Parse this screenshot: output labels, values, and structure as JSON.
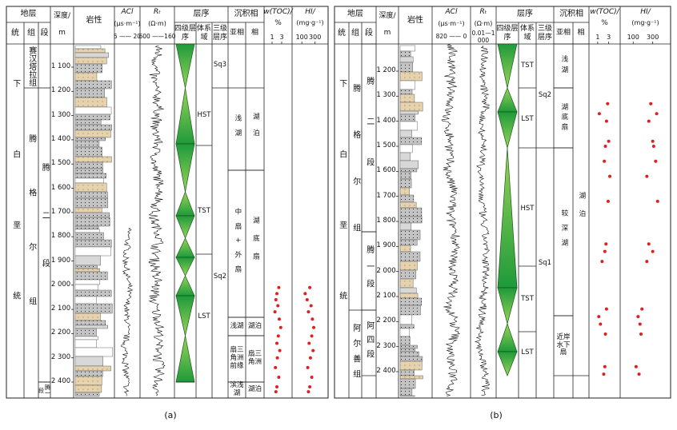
{
  "panels": [
    {
      "caption": "(a)",
      "header": {
        "strata": "地层",
        "system": "统",
        "formation": "组",
        "member": "段",
        "depth": "深度/",
        "depth_unit": "m",
        "lithology": "岩性",
        "ac": "ACl",
        "ac_unit": "(μs·m⁻¹)",
        "ac_scale": "5 —— 20",
        "rt": "Rₜ",
        "rt_unit": "(Ω·m)",
        "rt_scale": "600 ——160",
        "sequence": "层序",
        "fourth": "四级层序",
        "tract": "体系域",
        "third": "三级层序",
        "facies_group": "沉积相",
        "subfacies": "亚相",
        "facies": "相",
        "toc": "w(TOC)/",
        "toc_unit": "%",
        "hi": "HI/",
        "hi_unit": "(mg·g⁻¹)"
      },
      "system": "下白垩统",
      "formations": [
        "赛汉塔拉组",
        "腾格尔组"
      ],
      "members": [
        "腾二段",
        "腾一段"
      ],
      "depth_ticks": [
        {
          "value": 1100,
          "label": "1 100"
        },
        {
          "value": 1200,
          "label": "1 200"
        },
        {
          "value": 1300,
          "label": "1 300"
        },
        {
          "value": 1400,
          "label": "1 400"
        },
        {
          "value": 1500,
          "label": "1 500"
        },
        {
          "value": 1600,
          "label": "1 600"
        },
        {
          "value": 1700,
          "label": "1 700"
        },
        {
          "value": 1800,
          "label": "1 800"
        },
        {
          "value": 1900,
          "label": "1 900"
        },
        {
          "value": 2000,
          "label": "2 000"
        },
        {
          "value": 2100,
          "label": "2 100"
        },
        {
          "value": 2200,
          "label": "2 200"
        },
        {
          "value": 2300,
          "label": "2 300"
        },
        {
          "value": 2400,
          "label": "2 400"
        }
      ],
      "tracts": [
        "HST",
        "TST",
        "LST"
      ],
      "third": [
        "Sq3",
        "Sq2"
      ],
      "subfacies": [
        "浅湖",
        "中扇+外扇",
        "浅湖",
        "扇三角洲前缘",
        "滨浅湖"
      ],
      "facies": [
        "湖泊",
        "湖底扇",
        "湖泊",
        "扇三角洲",
        "湖泊"
      ],
      "toc_xlim": [
        0,
        4.5
      ],
      "toc_ticks": [
        1,
        3
      ],
      "hi_xlim": [
        0,
        450
      ],
      "hi_ticks": [
        100,
        300
      ],
      "samples": {
        "depth": [
          2010,
          2035,
          2060,
          2085,
          2110,
          2140,
          2175,
          2210,
          2240,
          2270,
          2300,
          2340,
          2380,
          2420,
          2440
        ],
        "toc": [
          2.4,
          2.0,
          1.8,
          2.2,
          1.6,
          2.5,
          2.8,
          2.3,
          2.0,
          2.6,
          2.1,
          1.7,
          2.4,
          2.0,
          1.8
        ],
        "hi": [
          220,
          150,
          180,
          240,
          200,
          260,
          280,
          250,
          210,
          270,
          230,
          190,
          250,
          220,
          200
        ]
      }
    },
    {
      "caption": "(b)",
      "header": {
        "strata": "地层",
        "system": "统",
        "formation": "组",
        "member": "段",
        "depth": "深度/",
        "depth_unit": "m",
        "lithology": "岩性",
        "ac": "ACl",
        "ac_unit": "(μs·m⁻¹)",
        "ac_scale": "820 —— 0",
        "rt": "Rₜ",
        "rt_unit": "(Ω·m)",
        "rt_scale": "0.01—1 000",
        "sequence": "层序",
        "fourth": "四级层序",
        "tract": "体系域",
        "third": "三级层序",
        "facies_group": "沉积相",
        "subfacies": "亚相",
        "facies": "相",
        "toc": "w(TOC)/",
        "toc_unit": "%",
        "hi": "HI/",
        "hi_unit": "(mg·g⁻¹)"
      },
      "system": "下白垩统",
      "formations": [
        "腾格尔组",
        "阿尔善组"
      ],
      "members": [
        "腾二段",
        "腾一段",
        "阿四段"
      ],
      "depth_ticks": [
        {
          "value": 1200,
          "label": "1 200"
        },
        {
          "value": 1300,
          "label": "1 300"
        },
        {
          "value": 1400,
          "label": "1 400"
        },
        {
          "value": 1500,
          "label": "1 500"
        },
        {
          "value": 1600,
          "label": "1 600"
        },
        {
          "value": 1700,
          "label": "1 700"
        },
        {
          "value": 1800,
          "label": "1 800"
        },
        {
          "value": 1900,
          "label": "1 900"
        },
        {
          "value": 2000,
          "label": "2 000"
        },
        {
          "value": 2100,
          "label": "2 100"
        },
        {
          "value": 2200,
          "label": "2 200"
        },
        {
          "value": 2300,
          "label": "2 300"
        },
        {
          "value": 2400,
          "label": "2 400"
        }
      ],
      "tracts": [
        "TST",
        "LST",
        "HST",
        "TST",
        "LST"
      ],
      "third": [
        "Sq2",
        "Sq1"
      ],
      "subfacies": [
        "浅湖",
        "湖底扇",
        "较深湖",
        "近岸水下扇"
      ],
      "facies": [
        "湖泊"
      ],
      "toc_xlim": [
        0,
        4.5
      ],
      "toc_ticks": [
        1,
        3
      ],
      "hi_xlim": [
        0,
        450
      ],
      "hi_ticks": [
        100,
        300
      ],
      "samples": {
        "depth": [
          1330,
          1370,
          1400,
          1480,
          1500,
          1560,
          1620,
          1720,
          1890,
          1920,
          1960,
          2150,
          2180,
          2210,
          2250,
          2380,
          2410
        ],
        "toc": [
          2.8,
          1.3,
          2.6,
          3.0,
          2.4,
          2.2,
          3.2,
          2.9,
          2.5,
          2.3,
          1.8,
          2.6,
          1.2,
          1.5,
          2.4,
          2.3,
          2.1
        ],
        "hi": [
          280,
          340,
          260,
          300,
          310,
          330,
          240,
          350,
          260,
          300,
          240,
          190,
          150,
          170,
          180,
          130,
          160
        ]
      }
    }
  ]
}
